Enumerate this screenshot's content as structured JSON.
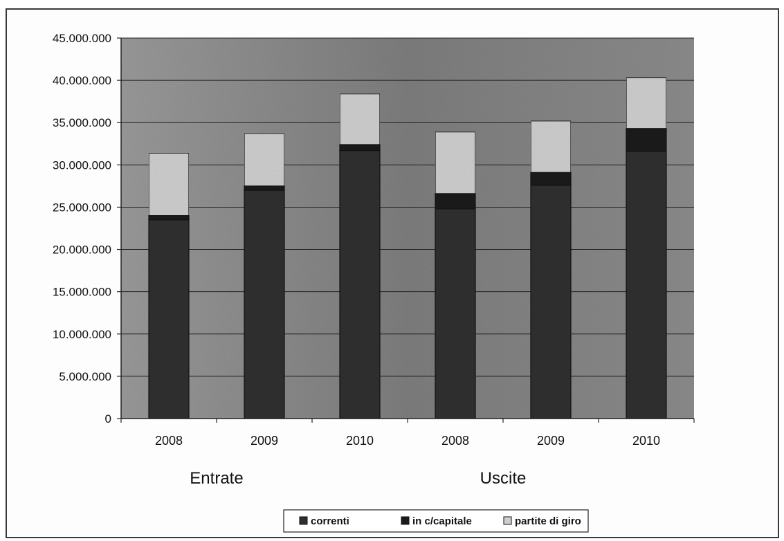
{
  "chart_data": {
    "type": "bar",
    "stacked": true,
    "title": "",
    "xlabel": "",
    "ylabel": "",
    "ylim": [
      0,
      45000000
    ],
    "yticks": [
      "0",
      "5.000.000",
      "10.000.000",
      "15.000.000",
      "20.000.000",
      "25.000.000",
      "30.000.000",
      "35.000.000",
      "40.000.000",
      "45.000.000"
    ],
    "categories": [
      "2008",
      "2009",
      "2010",
      "2008",
      "2009",
      "2010"
    ],
    "groups": [
      {
        "label": "Entrate",
        "categories": [
          "2008",
          "2009",
          "2010"
        ]
      },
      {
        "label": "Uscite",
        "categories": [
          "2008",
          "2009",
          "2010"
        ]
      }
    ],
    "series": [
      {
        "name": "correnti",
        "values": [
          23500000,
          27000000,
          31700000,
          24800000,
          27600000,
          31600000
        ]
      },
      {
        "name": "in c/capitale",
        "values": [
          500000,
          500000,
          700000,
          1800000,
          1500000,
          2700000
        ]
      },
      {
        "name": "partite di giro",
        "values": [
          7400000,
          6200000,
          6000000,
          7300000,
          6100000,
          6000000
        ]
      }
    ],
    "grid": true,
    "legend_position": "bottom",
    "colors": {
      "plot_background": "#8a8a8a",
      "correnti": "#2e2e2e",
      "in c/capitale": "#1a1a1a",
      "partite di giro": "#cfcfcf"
    }
  }
}
